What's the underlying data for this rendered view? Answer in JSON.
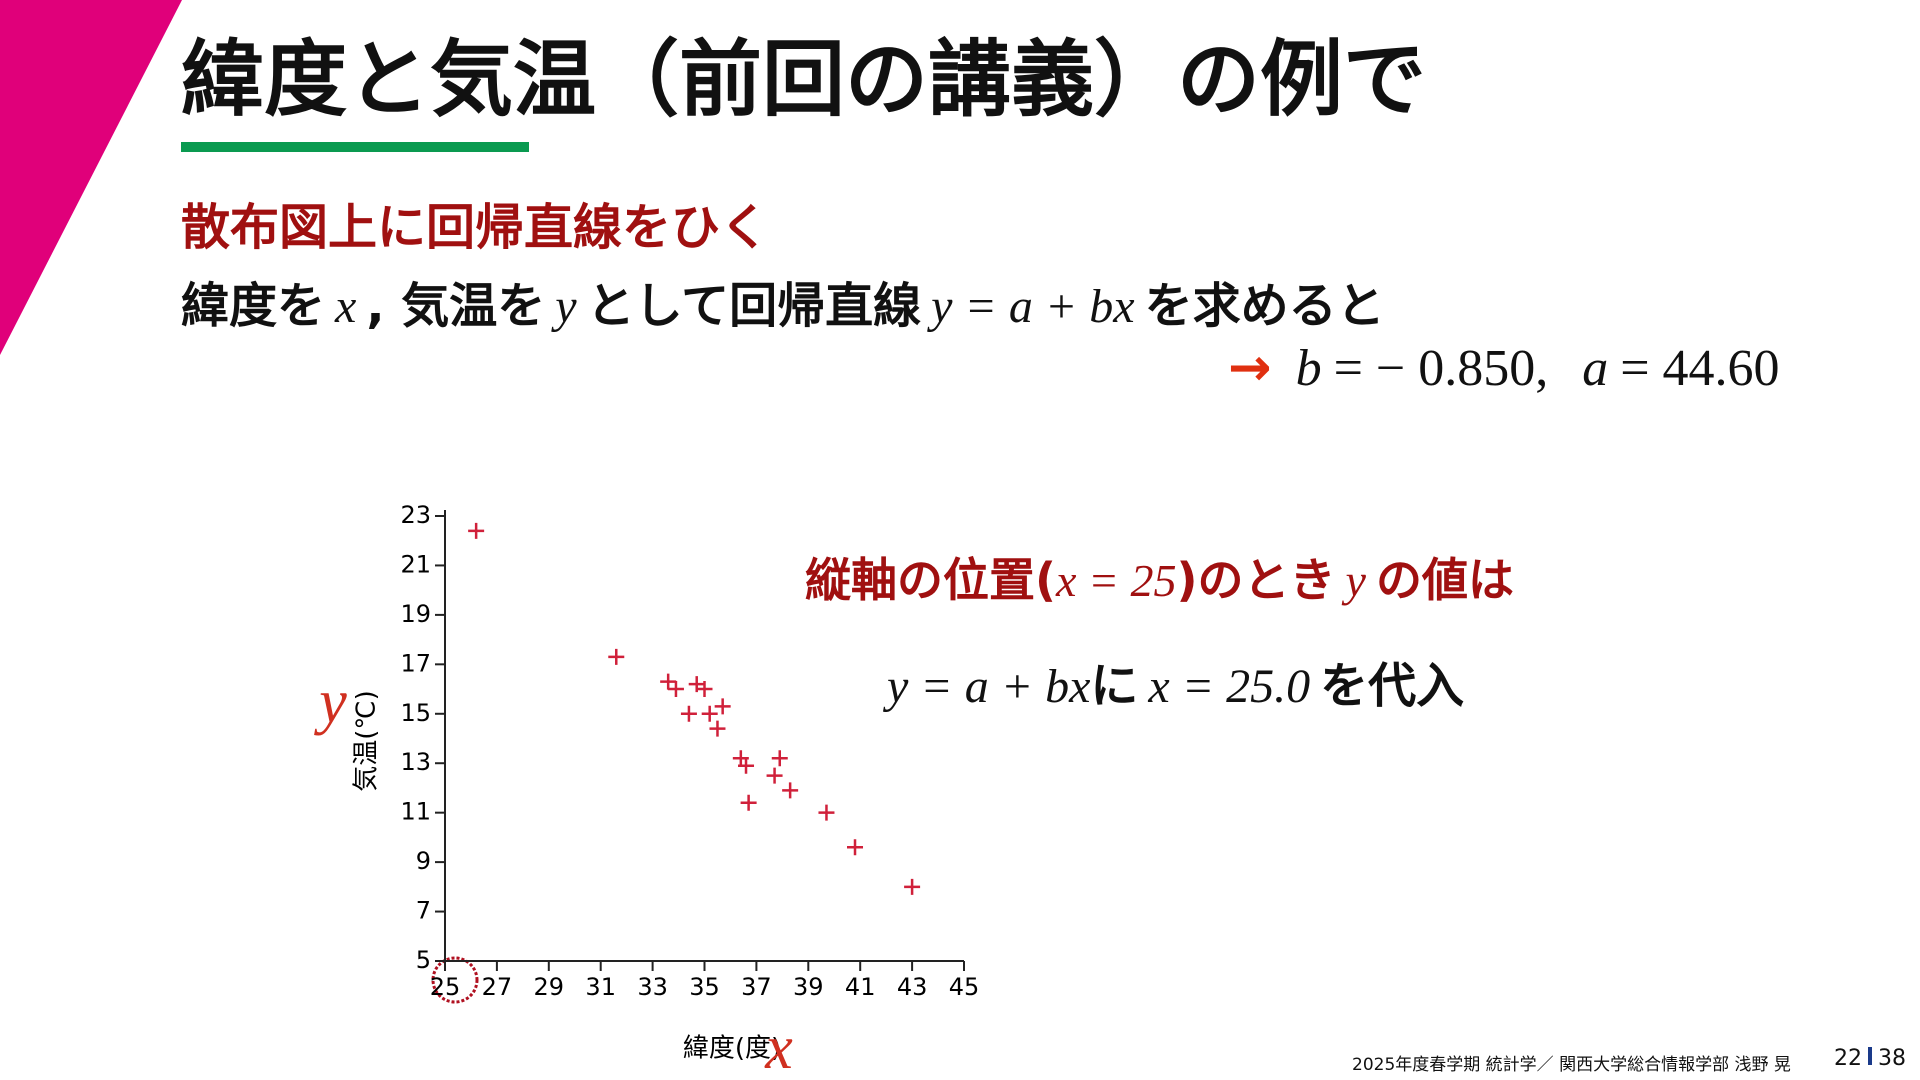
{
  "slide": {
    "title": "緯度と気温（前回の講義）の例で",
    "subtitle": "散布図上に回帰直線をひく",
    "statement": [
      "緯度を",
      "x",
      ",",
      "気温を",
      "y",
      "として回帰直線",
      "y = a + bx",
      "を求めると"
    ],
    "result": [
      "→",
      "b",
      "= − 0.850,",
      "a",
      "= 44.60"
    ],
    "callout_1": [
      "縦軸の位置(",
      "x = 25",
      ")のとき",
      "y",
      "の値は"
    ],
    "callout_2": [
      "y = a + bx",
      "に",
      "x = 25.0",
      "を代入"
    ],
    "footer": "2025年度春学期  統計学／ 関西大学総合情報学部  浅野  晃",
    "page": "22",
    "total_pages": "38",
    "y_symbol": "y",
    "x_symbol": "x"
  },
  "chart_data": {
    "type": "scatter",
    "x_label": "緯度(度)",
    "y_label": "気温(℃)",
    "x": [
      26.2,
      31.6,
      33.6,
      33.9,
      34.7,
      35.0,
      34.4,
      35.2,
      35.7,
      35.5,
      36.4,
      36.6,
      36.7,
      37.9,
      37.7,
      38.3,
      39.7,
      40.8,
      43.0
    ],
    "y": [
      22.4,
      17.3,
      16.3,
      16.0,
      16.2,
      16.0,
      15.0,
      15.0,
      15.3,
      14.4,
      13.2,
      12.9,
      11.4,
      13.2,
      12.5,
      11.9,
      11.0,
      9.6,
      8.0
    ],
    "color": "#d0203a",
    "xlim": [
      25,
      45
    ],
    "ylim": [
      5,
      23
    ],
    "xticks": [
      25,
      27,
      29,
      31,
      33,
      35,
      37,
      39,
      41,
      43,
      45
    ],
    "yticks": [
      5,
      7,
      9,
      11,
      13,
      15,
      17,
      19,
      21,
      23
    ]
  }
}
